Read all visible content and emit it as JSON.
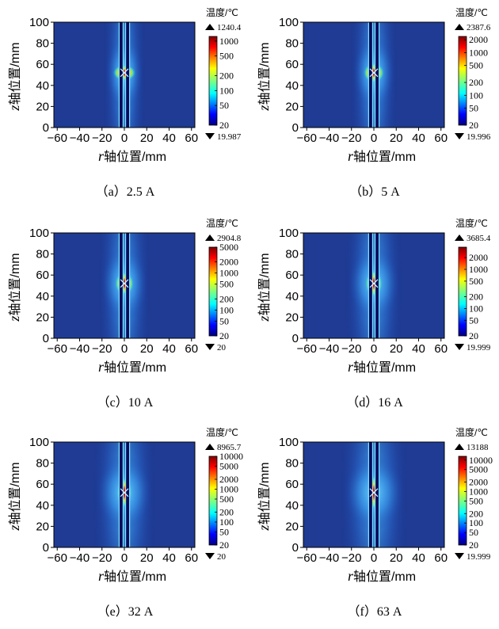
{
  "chart_data": [
    {
      "type": "heatmap",
      "caption": "（a）2.5 A",
      "xlabel_var": "r",
      "xlabel_text": "轴位置/mm",
      "ylabel_var": "z",
      "ylabel_text": "轴位置/mm",
      "xlim": [
        -63,
        63
      ],
      "ylim": [
        0,
        100
      ],
      "xticks": [
        -60,
        -40,
        -20,
        0,
        20,
        40,
        60
      ],
      "yticks": [
        0,
        20,
        40,
        60,
        80,
        100
      ],
      "colorbar": {
        "title": "温度/℃",
        "max_label": "1240.4",
        "min_label": "19.987",
        "ticks": [
          "1000",
          "500",
          "200",
          "100",
          "50",
          "20"
        ],
        "range": [
          20,
          1240.4
        ],
        "scale": "log"
      }
    },
    {
      "type": "heatmap",
      "caption": "（b）5 A",
      "xlabel_var": "r",
      "xlabel_text": "轴位置/mm",
      "ylabel_var": "z",
      "ylabel_text": "轴位置/mm",
      "xlim": [
        -63,
        63
      ],
      "ylim": [
        0,
        100
      ],
      "xticks": [
        -60,
        -40,
        -20,
        0,
        20,
        40,
        60
      ],
      "yticks": [
        0,
        20,
        40,
        60,
        80,
        100
      ],
      "colorbar": {
        "title": "温度/℃",
        "max_label": "2387.6",
        "min_label": "19.996",
        "ticks": [
          "2000",
          "1000",
          "500",
          "200",
          "100",
          "50",
          "20"
        ],
        "range": [
          20,
          2387.6
        ],
        "scale": "log"
      }
    },
    {
      "type": "heatmap",
      "caption": "（c）10 A",
      "xlabel_var": "r",
      "xlabel_text": "轴位置/mm",
      "ylabel_var": "z",
      "ylabel_text": "轴位置/mm",
      "xlim": [
        -63,
        63
      ],
      "ylim": [
        0,
        100
      ],
      "xticks": [
        -60,
        -40,
        -20,
        0,
        20,
        40,
        60
      ],
      "yticks": [
        0,
        20,
        40,
        60,
        80,
        100
      ],
      "colorbar": {
        "title": "温度/℃",
        "max_label": "2904.8",
        "min_label": "20",
        "ticks": [
          "5000",
          "2000",
          "1000",
          "500",
          "200",
          "100",
          "50",
          "20"
        ],
        "range": [
          20,
          5000
        ],
        "scale": "log"
      }
    },
    {
      "type": "heatmap",
      "caption": "（d）16 A",
      "xlabel_var": "r",
      "xlabel_text": "轴位置/mm",
      "ylabel_var": "z",
      "ylabel_text": "轴位置/mm",
      "xlim": [
        -63,
        63
      ],
      "ylim": [
        0,
        100
      ],
      "xticks": [
        -60,
        -40,
        -20,
        0,
        20,
        40,
        60
      ],
      "yticks": [
        0,
        20,
        40,
        60,
        80,
        100
      ],
      "colorbar": {
        "title": "温度/℃",
        "max_label": "3685.4",
        "min_label": "19.999",
        "ticks": [
          "2000",
          "1000",
          "500",
          "200",
          "100",
          "50",
          "20"
        ],
        "range": [
          20,
          3685.4
        ],
        "scale": "log"
      }
    },
    {
      "type": "heatmap",
      "caption": "（e）32 A",
      "xlabel_var": "r",
      "xlabel_text": "轴位置/mm",
      "ylabel_var": "z",
      "ylabel_text": "轴位置/mm",
      "xlim": [
        -63,
        63
      ],
      "ylim": [
        0,
        100
      ],
      "xticks": [
        -60,
        -40,
        -20,
        0,
        20,
        40,
        60
      ],
      "yticks": [
        0,
        20,
        40,
        60,
        80,
        100
      ],
      "colorbar": {
        "title": "温度/℃",
        "max_label": "8965.7",
        "min_label": "20",
        "ticks": [
          "10000",
          "5000",
          "2000",
          "1000",
          "500",
          "200",
          "100",
          "50",
          "20"
        ],
        "range": [
          20,
          10000
        ],
        "scale": "log"
      }
    },
    {
      "type": "heatmap",
      "caption": "（f）63 A",
      "xlabel_var": "r",
      "xlabel_text": "轴位置/mm",
      "ylabel_var": "z",
      "ylabel_text": "轴位置/mm",
      "xlim": [
        -63,
        63
      ],
      "ylim": [
        0,
        100
      ],
      "xticks": [
        -60,
        -40,
        -20,
        0,
        20,
        40,
        60
      ],
      "yticks": [
        0,
        20,
        40,
        60,
        80,
        100
      ],
      "colorbar": {
        "title": "温度/℃",
        "max_label": "13188",
        "min_label": "19.999",
        "ticks": [
          "10000",
          "5000",
          "2000",
          "1000",
          "500",
          "200",
          "100",
          "50",
          "20"
        ],
        "range": [
          20,
          13188
        ],
        "scale": "log"
      }
    }
  ]
}
